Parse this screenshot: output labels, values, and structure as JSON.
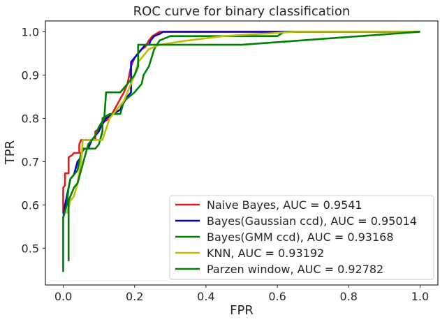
{
  "chart_data": {
    "type": "line",
    "title": "ROC curve for binary classification",
    "xlabel": "FPR",
    "ylabel": "TPR",
    "xlim": [
      -0.05,
      1.05
    ],
    "ylim": [
      0.415,
      1.025
    ],
    "xticks": [
      "0.0",
      "0.2",
      "0.4",
      "0.6",
      "0.8",
      "1.0"
    ],
    "xtick_values": [
      0.0,
      0.2,
      0.4,
      0.6,
      0.8,
      1.0
    ],
    "yticks": [
      "0.5",
      "0.6",
      "0.7",
      "0.8",
      "0.9",
      "1.0"
    ],
    "ytick_values": [
      0.5,
      0.6,
      0.7,
      0.8,
      0.9,
      1.0
    ],
    "grid": false,
    "legend_position": "bottom-right",
    "series": [
      {
        "name": "Naive Bayes, AUC = 0.9541",
        "color": "#e31a1c",
        "points": [
          [
            0.0,
            0.58
          ],
          [
            0.0,
            0.64
          ],
          [
            0.005,
            0.645
          ],
          [
            0.005,
            0.673
          ],
          [
            0.015,
            0.673
          ],
          [
            0.015,
            0.71
          ],
          [
            0.025,
            0.715
          ],
          [
            0.03,
            0.72
          ],
          [
            0.04,
            0.72
          ],
          [
            0.045,
            0.72
          ],
          [
            0.045,
            0.74
          ],
          [
            0.05,
            0.75
          ],
          [
            0.09,
            0.75
          ],
          [
            0.09,
            0.77
          ],
          [
            0.1,
            0.775
          ],
          [
            0.11,
            0.79
          ],
          [
            0.13,
            0.8
          ],
          [
            0.15,
            0.83
          ],
          [
            0.17,
            0.86
          ],
          [
            0.18,
            0.88
          ],
          [
            0.19,
            0.92
          ],
          [
            0.2,
            0.94
          ],
          [
            0.21,
            0.95
          ],
          [
            0.22,
            0.96
          ],
          [
            0.23,
            0.965
          ],
          [
            0.24,
            0.98
          ],
          [
            0.25,
            0.99
          ],
          [
            0.27,
            1.0
          ],
          [
            1.0,
            1.0
          ]
        ]
      },
      {
        "name": "Bayes(Gaussian ccd), AUC = 0.95014",
        "color": "#0000cc",
        "points": [
          [
            0.0,
            0.57
          ],
          [
            0.005,
            0.6
          ],
          [
            0.01,
            0.62
          ],
          [
            0.02,
            0.66
          ],
          [
            0.03,
            0.67
          ],
          [
            0.04,
            0.7
          ],
          [
            0.05,
            0.71
          ],
          [
            0.055,
            0.73
          ],
          [
            0.07,
            0.73
          ],
          [
            0.08,
            0.75
          ],
          [
            0.09,
            0.76
          ],
          [
            0.1,
            0.77
          ],
          [
            0.105,
            0.78
          ],
          [
            0.12,
            0.8
          ],
          [
            0.14,
            0.81
          ],
          [
            0.16,
            0.82
          ],
          [
            0.165,
            0.83
          ],
          [
            0.18,
            0.85
          ],
          [
            0.19,
            0.86
          ],
          [
            0.19,
            0.93
          ],
          [
            0.2,
            0.94
          ],
          [
            0.21,
            0.95
          ],
          [
            0.22,
            0.96
          ],
          [
            0.23,
            0.97
          ],
          [
            0.24,
            0.97
          ],
          [
            0.245,
            0.98
          ],
          [
            0.255,
            0.99
          ],
          [
            0.27,
            0.995
          ],
          [
            0.28,
            1.0
          ],
          [
            1.0,
            1.0
          ]
        ]
      },
      {
        "name": "Bayes(GMM ccd), AUC = 0.93168",
        "color": "#008000",
        "points": [
          [
            0.0,
            0.445
          ],
          [
            0.0,
            0.57
          ],
          [
            0.01,
            0.6
          ],
          [
            0.015,
            0.64
          ],
          [
            0.02,
            0.66
          ],
          [
            0.03,
            0.67
          ],
          [
            0.04,
            0.68
          ],
          [
            0.045,
            0.7
          ],
          [
            0.05,
            0.72
          ],
          [
            0.06,
            0.73
          ],
          [
            0.09,
            0.73
          ],
          [
            0.1,
            0.74
          ],
          [
            0.11,
            0.77
          ],
          [
            0.11,
            0.8
          ],
          [
            0.13,
            0.81
          ],
          [
            0.16,
            0.81
          ],
          [
            0.17,
            0.84
          ],
          [
            0.2,
            0.86
          ],
          [
            0.22,
            0.88
          ],
          [
            0.225,
            0.9
          ],
          [
            0.24,
            0.92
          ],
          [
            0.255,
            0.96
          ],
          [
            0.27,
            0.98
          ],
          [
            0.3,
            0.99
          ],
          [
            0.6,
            0.99
          ],
          [
            0.62,
            1.0
          ],
          [
            1.0,
            1.0
          ]
        ]
      },
      {
        "name": "KNN, AUC = 0.93192",
        "color": "#bfbf00",
        "points": [
          [
            0.01,
            0.58
          ],
          [
            0.02,
            0.61
          ],
          [
            0.03,
            0.62
          ],
          [
            0.04,
            0.65
          ],
          [
            0.05,
            0.7
          ],
          [
            0.055,
            0.75
          ],
          [
            0.06,
            0.75
          ],
          [
            0.09,
            0.75
          ],
          [
            0.11,
            0.75
          ],
          [
            0.13,
            0.8
          ],
          [
            0.15,
            0.82
          ],
          [
            0.17,
            0.84
          ],
          [
            0.19,
            0.88
          ],
          [
            0.2,
            0.9
          ],
          [
            0.21,
            0.93
          ],
          [
            0.22,
            0.94
          ],
          [
            0.23,
            0.95
          ],
          [
            0.24,
            0.96
          ],
          [
            0.27,
            0.97
          ],
          [
            0.35,
            0.98
          ],
          [
            0.45,
            0.99
          ],
          [
            0.55,
            0.995
          ],
          [
            0.65,
            1.0
          ],
          [
            1.0,
            1.0
          ]
        ]
      },
      {
        "name": "Parzen window, AUC = 0.92782",
        "color": "#008000",
        "points": [
          [
            0.015,
            0.47
          ],
          [
            0.015,
            0.61
          ],
          [
            0.03,
            0.64
          ],
          [
            0.04,
            0.65
          ],
          [
            0.05,
            0.68
          ],
          [
            0.06,
            0.71
          ],
          [
            0.07,
            0.74
          ],
          [
            0.09,
            0.76
          ],
          [
            0.1,
            0.78
          ],
          [
            0.115,
            0.8
          ],
          [
            0.12,
            0.86
          ],
          [
            0.16,
            0.86
          ],
          [
            0.18,
            0.88
          ],
          [
            0.19,
            0.89
          ],
          [
            0.2,
            0.9
          ],
          [
            0.21,
            0.92
          ],
          [
            0.21,
            0.97
          ],
          [
            0.25,
            0.97
          ],
          [
            0.26,
            0.97
          ],
          [
            0.5,
            0.97
          ],
          [
            1.0,
            1.0
          ]
        ]
      }
    ]
  }
}
